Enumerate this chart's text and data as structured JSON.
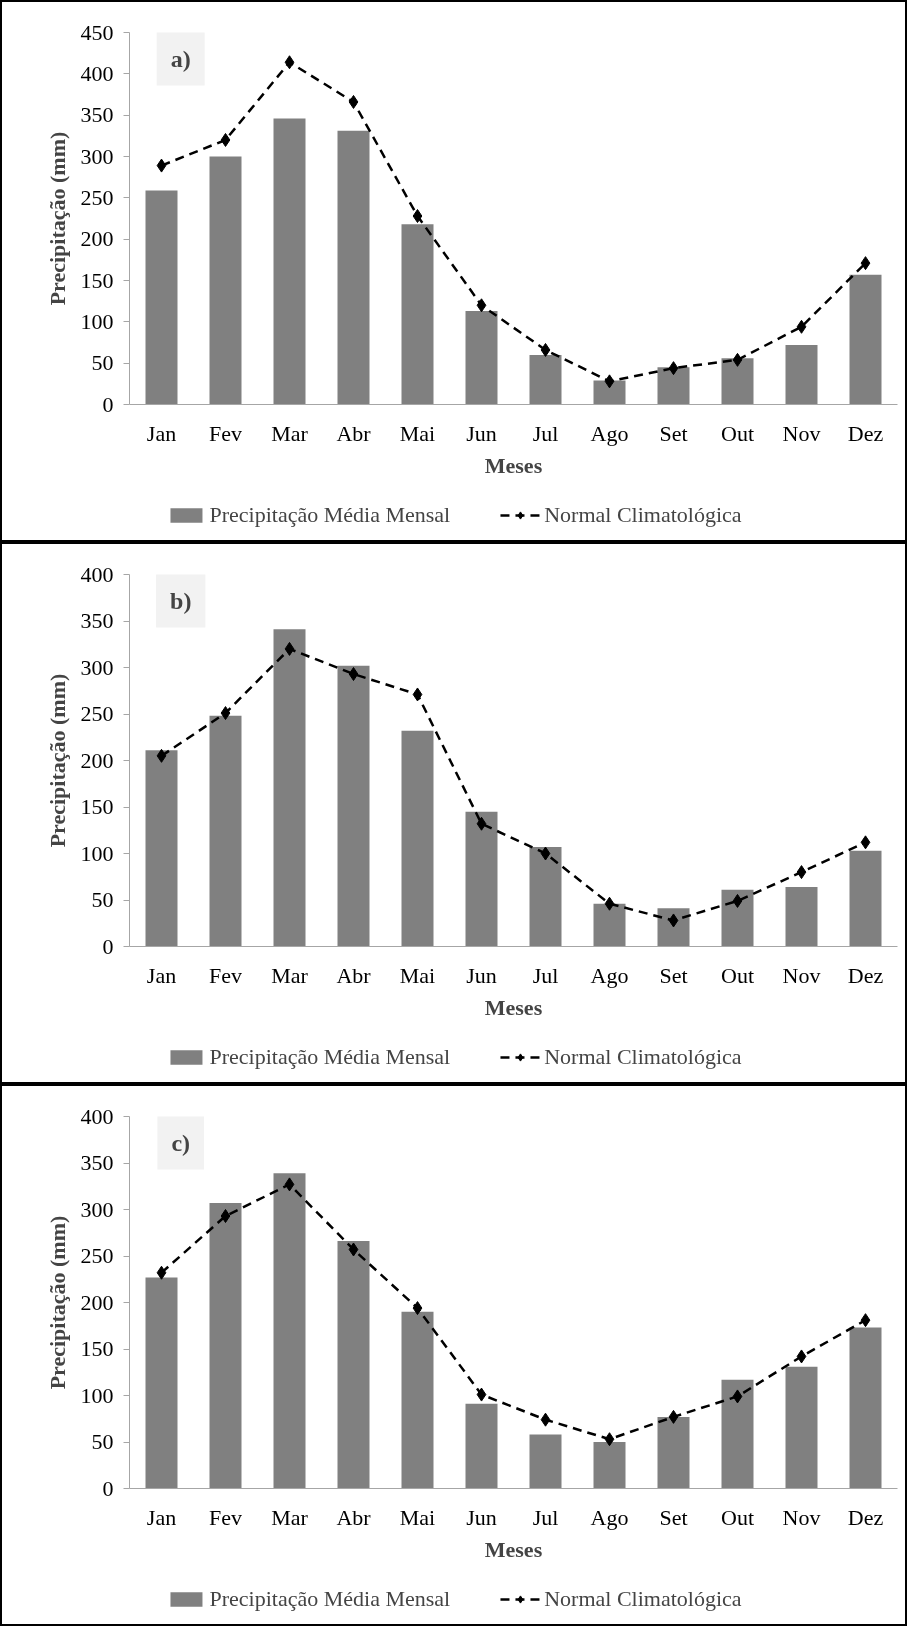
{
  "chart_data": [
    {
      "type": "bar",
      "categories": [
        "Jan",
        "Fev",
        "Mar",
        "Abr",
        "Mai",
        "Jun",
        "Jul",
        "Ago",
        "Set",
        "Out",
        "Nov",
        "Dez"
      ],
      "xlabel": "Meses",
      "ylabel": "Precipitação (mm)",
      "ylim": [
        0,
        450
      ],
      "yticks": [
        0,
        50,
        100,
        150,
        200,
        250,
        300,
        350,
        400,
        450
      ],
      "grid": false,
      "legend": "bottom",
      "annotations": [
        "a)"
      ],
      "series": [
        {
          "name": "Precipitação Média Mensal",
          "color": "#808080",
          "values": [
            259,
            300,
            346,
            331,
            218,
            113,
            60,
            29,
            45,
            56,
            72,
            157
          ]
        },
        {
          "name": "Normal Climatológica",
          "type": "line",
          "color": "#000000",
          "line_style": "dashed",
          "marker": "diamond",
          "values": [
            289,
            320,
            414,
            366,
            228,
            120,
            66,
            28,
            44,
            54,
            94,
            171
          ]
        }
      ]
    },
    {
      "type": "bar",
      "categories": [
        "Jan",
        "Fev",
        "Mar",
        "Abr",
        "Mai",
        "Jun",
        "Jul",
        "Ago",
        "Set",
        "Out",
        "Nov",
        "Dez"
      ],
      "xlabel": "Meses",
      "ylabel": "Precipitação (mm)",
      "ylim": [
        0,
        400
      ],
      "yticks": [
        0,
        50,
        100,
        150,
        200,
        250,
        300,
        350,
        400
      ],
      "grid": false,
      "legend": "bottom",
      "annotations": [
        "b)"
      ],
      "series": [
        {
          "name": "Precipitação Média Mensal",
          "color": "#808080",
          "values": [
            211,
            248,
            341,
            302,
            232,
            145,
            107,
            46,
            41,
            61,
            64,
            103
          ]
        },
        {
          "name": "Normal Climatológica",
          "type": "line",
          "color": "#000000",
          "line_style": "dashed",
          "marker": "diamond",
          "values": [
            205,
            251,
            320,
            293,
            271,
            132,
            100,
            46,
            28,
            49,
            80,
            112
          ]
        }
      ]
    },
    {
      "type": "bar",
      "categories": [
        "Jan",
        "Fev",
        "Mar",
        "Abr",
        "Mai",
        "Jun",
        "Jul",
        "Ago",
        "Set",
        "Out",
        "Nov",
        "Dez"
      ],
      "xlabel": "Meses",
      "ylabel": "Precipitação (mm)",
      "ylim": [
        0,
        400
      ],
      "yticks": [
        0,
        50,
        100,
        150,
        200,
        250,
        300,
        350,
        400
      ],
      "grid": false,
      "legend": "bottom",
      "annotations": [
        "c)"
      ],
      "series": [
        {
          "name": "Precipitação Média Mensal",
          "color": "#808080",
          "values": [
            227,
            307,
            339,
            266,
            190,
            91,
            58,
            50,
            77,
            117,
            131,
            173
          ]
        },
        {
          "name": "Normal Climatológica",
          "type": "line",
          "color": "#000000",
          "line_style": "dashed",
          "marker": "diamond",
          "values": [
            232,
            293,
            327,
            257,
            194,
            101,
            74,
            53,
            77,
            99,
            142,
            181
          ]
        }
      ]
    }
  ]
}
